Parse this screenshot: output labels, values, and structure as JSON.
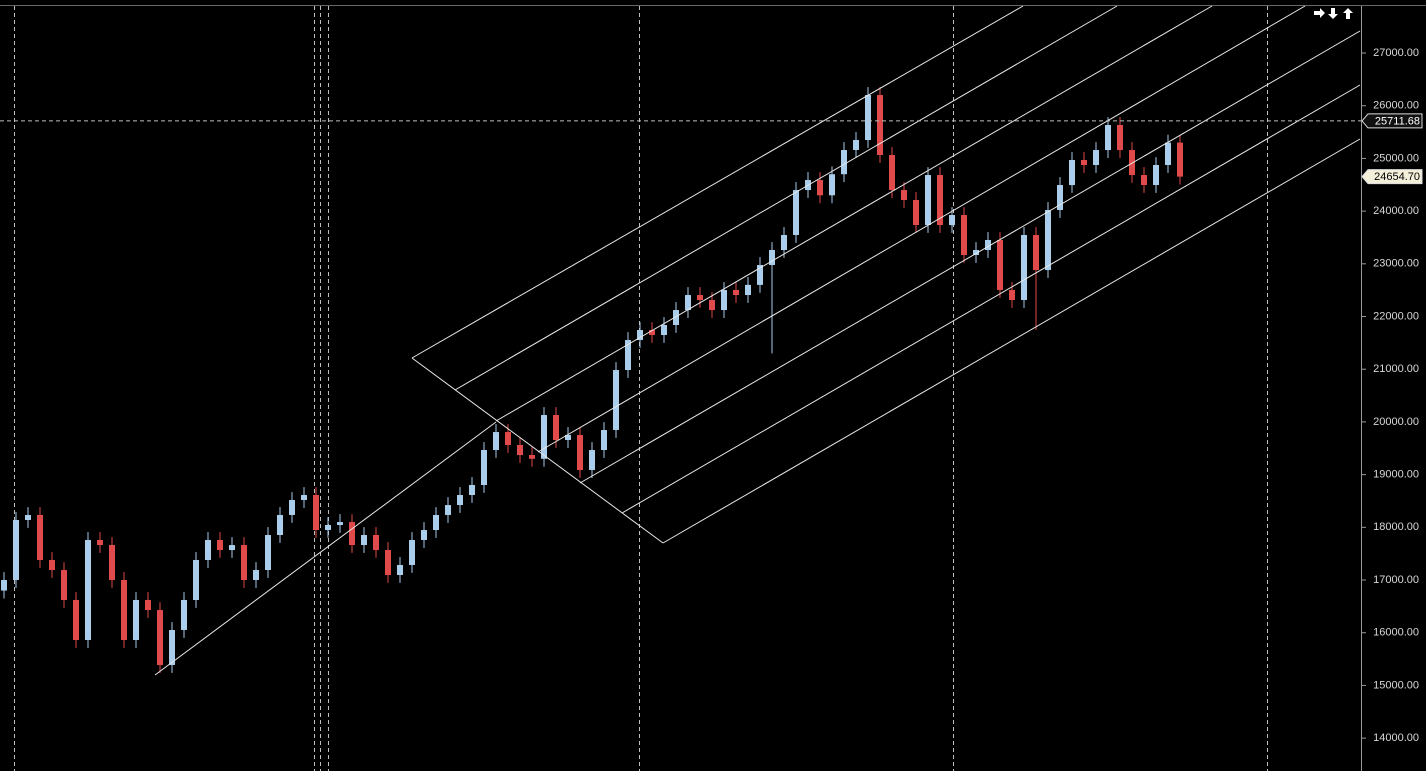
{
  "chart_data": {
    "type": "candlestick",
    "ylim": [
      13376,
      28006
    ],
    "yticks": [
      {
        "value": 14000,
        "label": "14000.00"
      },
      {
        "value": 15000,
        "label": "15000.00"
      },
      {
        "value": 16000,
        "label": "16000.00"
      },
      {
        "value": 17000,
        "label": "17000.00"
      },
      {
        "value": 18000,
        "label": "18000.00"
      },
      {
        "value": 19000,
        "label": "19000.00"
      },
      {
        "value": 20000,
        "label": "20000.00"
      },
      {
        "value": 21000,
        "label": "21000.00"
      },
      {
        "value": 22000,
        "label": "22000.00"
      },
      {
        "value": 23000,
        "label": "23000.00"
      },
      {
        "value": 24000,
        "label": "24000.00"
      },
      {
        "value": 25000,
        "label": "25000.00"
      },
      {
        "value": 26000,
        "label": "26000.00"
      },
      {
        "value": 27000,
        "label": "27000.00"
      }
    ],
    "price_markers": [
      25711.68,
      {
        "value": 24654.7,
        "label": "24654.70"
      }
    ],
    "up_color": "#a9cdea",
    "down_color": "#e04a4a",
    "ohlc": [
      [
        16800,
        17150,
        16650,
        17000
      ],
      [
        17000,
        18289,
        16850,
        18139
      ],
      [
        18139,
        18384,
        17989,
        18234
      ],
      [
        18234,
        18384,
        17230,
        17380
      ],
      [
        17380,
        17530,
        17040,
        17190
      ],
      [
        17190,
        17340,
        16471,
        16621
      ],
      [
        16621,
        16771,
        15712,
        15862
      ],
      [
        15862,
        17909,
        15712,
        17759
      ],
      [
        17759,
        17909,
        17514,
        17664
      ],
      [
        17664,
        17814,
        16850,
        17000
      ],
      [
        17000,
        17150,
        15712,
        15862
      ],
      [
        15862,
        16771,
        15712,
        16621
      ],
      [
        16621,
        16771,
        16281,
        16431
      ],
      [
        16431,
        16581,
        15237,
        15387
      ],
      [
        15387,
        16201,
        15237,
        16051
      ],
      [
        16051,
        16771,
        15901,
        16621
      ],
      [
        16621,
        17530,
        16471,
        17380
      ],
      [
        17380,
        17909,
        17230,
        17759
      ],
      [
        17759,
        17909,
        17419,
        17569
      ],
      [
        17569,
        17814,
        17419,
        17664
      ],
      [
        17664,
        17814,
        16850,
        17000
      ],
      [
        17000,
        17340,
        16850,
        17190
      ],
      [
        17190,
        18004,
        17040,
        17854
      ],
      [
        17854,
        18384,
        17704,
        18234
      ],
      [
        18234,
        18668,
        18084,
        18518
      ],
      [
        18518,
        18763,
        18368,
        18613
      ],
      [
        18613,
        18763,
        17799,
        17949
      ],
      [
        17949,
        18194,
        17799,
        18044
      ],
      [
        18044,
        18250,
        17894,
        18100
      ],
      [
        18100,
        18250,
        17514,
        17664
      ],
      [
        17664,
        18004,
        17514,
        17854
      ],
      [
        17854,
        18004,
        17419,
        17569
      ],
      [
        17569,
        17719,
        16945,
        17095
      ],
      [
        17095,
        17435,
        16945,
        17285
      ],
      [
        17285,
        17909,
        17135,
        17759
      ],
      [
        17759,
        18099,
        17609,
        17949
      ],
      [
        17949,
        18384,
        17799,
        18234
      ],
      [
        18234,
        18573,
        18084,
        18423
      ],
      [
        18423,
        18763,
        18273,
        18613
      ],
      [
        18613,
        18953,
        18463,
        18803
      ],
      [
        18803,
        19617,
        18653,
        19467
      ],
      [
        19467,
        19958,
        19317,
        19808
      ],
      [
        19808,
        19958,
        19412,
        19562
      ],
      [
        19562,
        19712,
        19222,
        19372
      ],
      [
        19372,
        19522,
        19150,
        19300
      ],
      [
        19300,
        20281,
        19150,
        20131
      ],
      [
        20131,
        20281,
        19507,
        19657
      ],
      [
        19657,
        19902,
        19507,
        19752
      ],
      [
        19752,
        19902,
        18937,
        19087
      ],
      [
        19087,
        19617,
        18937,
        19467
      ],
      [
        19467,
        19996,
        19317,
        19846
      ],
      [
        19846,
        21135,
        19696,
        20985
      ],
      [
        20985,
        21704,
        20835,
        21554
      ],
      [
        21554,
        21894,
        21404,
        21744
      ],
      [
        21744,
        21894,
        21499,
        21649
      ],
      [
        21649,
        21989,
        21499,
        21839
      ],
      [
        21839,
        22273,
        21689,
        22123
      ],
      [
        22123,
        22558,
        21973,
        22408
      ],
      [
        22408,
        22558,
        22163,
        22313
      ],
      [
        22313,
        22463,
        21973,
        22123
      ],
      [
        22123,
        22653,
        21973,
        22503
      ],
      [
        22503,
        22653,
        22258,
        22408
      ],
      [
        22408,
        22750,
        22258,
        22600
      ],
      [
        22600,
        23127,
        22450,
        22977
      ],
      [
        22977,
        23412,
        21300,
        23262
      ],
      [
        23262,
        23697,
        23112,
        23547
      ],
      [
        23547,
        24550,
        23397,
        24400
      ],
      [
        24400,
        24740,
        24250,
        24590
      ],
      [
        24590,
        24740,
        24150,
        24300
      ],
      [
        24300,
        24850,
        24150,
        24700
      ],
      [
        24700,
        25309,
        24550,
        25159
      ],
      [
        25159,
        25499,
        25009,
        25349
      ],
      [
        25349,
        26353,
        25199,
        26203
      ],
      [
        26203,
        26353,
        24915,
        25065
      ],
      [
        25065,
        25215,
        24250,
        24400
      ],
      [
        24400,
        24550,
        24061,
        24211
      ],
      [
        24211,
        24361,
        23586,
        23736
      ],
      [
        23736,
        24835,
        23586,
        24685
      ],
      [
        24685,
        24835,
        23586,
        23736
      ],
      [
        23736,
        24076,
        23586,
        23926
      ],
      [
        23926,
        24076,
        23017,
        23167
      ],
      [
        23167,
        23412,
        23017,
        23262
      ],
      [
        23262,
        23602,
        23112,
        23452
      ],
      [
        23452,
        23602,
        22353,
        22503
      ],
      [
        22503,
        22653,
        22163,
        22313
      ],
      [
        22313,
        23697,
        22163,
        23547
      ],
      [
        23547,
        23697,
        21750,
        22882
      ],
      [
        22882,
        24171,
        22732,
        24021
      ],
      [
        24021,
        24645,
        23871,
        24495
      ],
      [
        24495,
        25120,
        24345,
        24970
      ],
      [
        24970,
        25120,
        24725,
        24875
      ],
      [
        24875,
        25309,
        24725,
        25159
      ],
      [
        25159,
        25784,
        25009,
        25634
      ],
      [
        25634,
        25784,
        25009,
        25159
      ],
      [
        25159,
        25309,
        24535,
        24685
      ],
      [
        24685,
        24835,
        24345,
        24495
      ],
      [
        24495,
        25025,
        24345,
        24875
      ],
      [
        24875,
        25450,
        24725,
        25300
      ],
      [
        25300,
        25450,
        24504.7,
        24654.7
      ]
    ]
  }
}
